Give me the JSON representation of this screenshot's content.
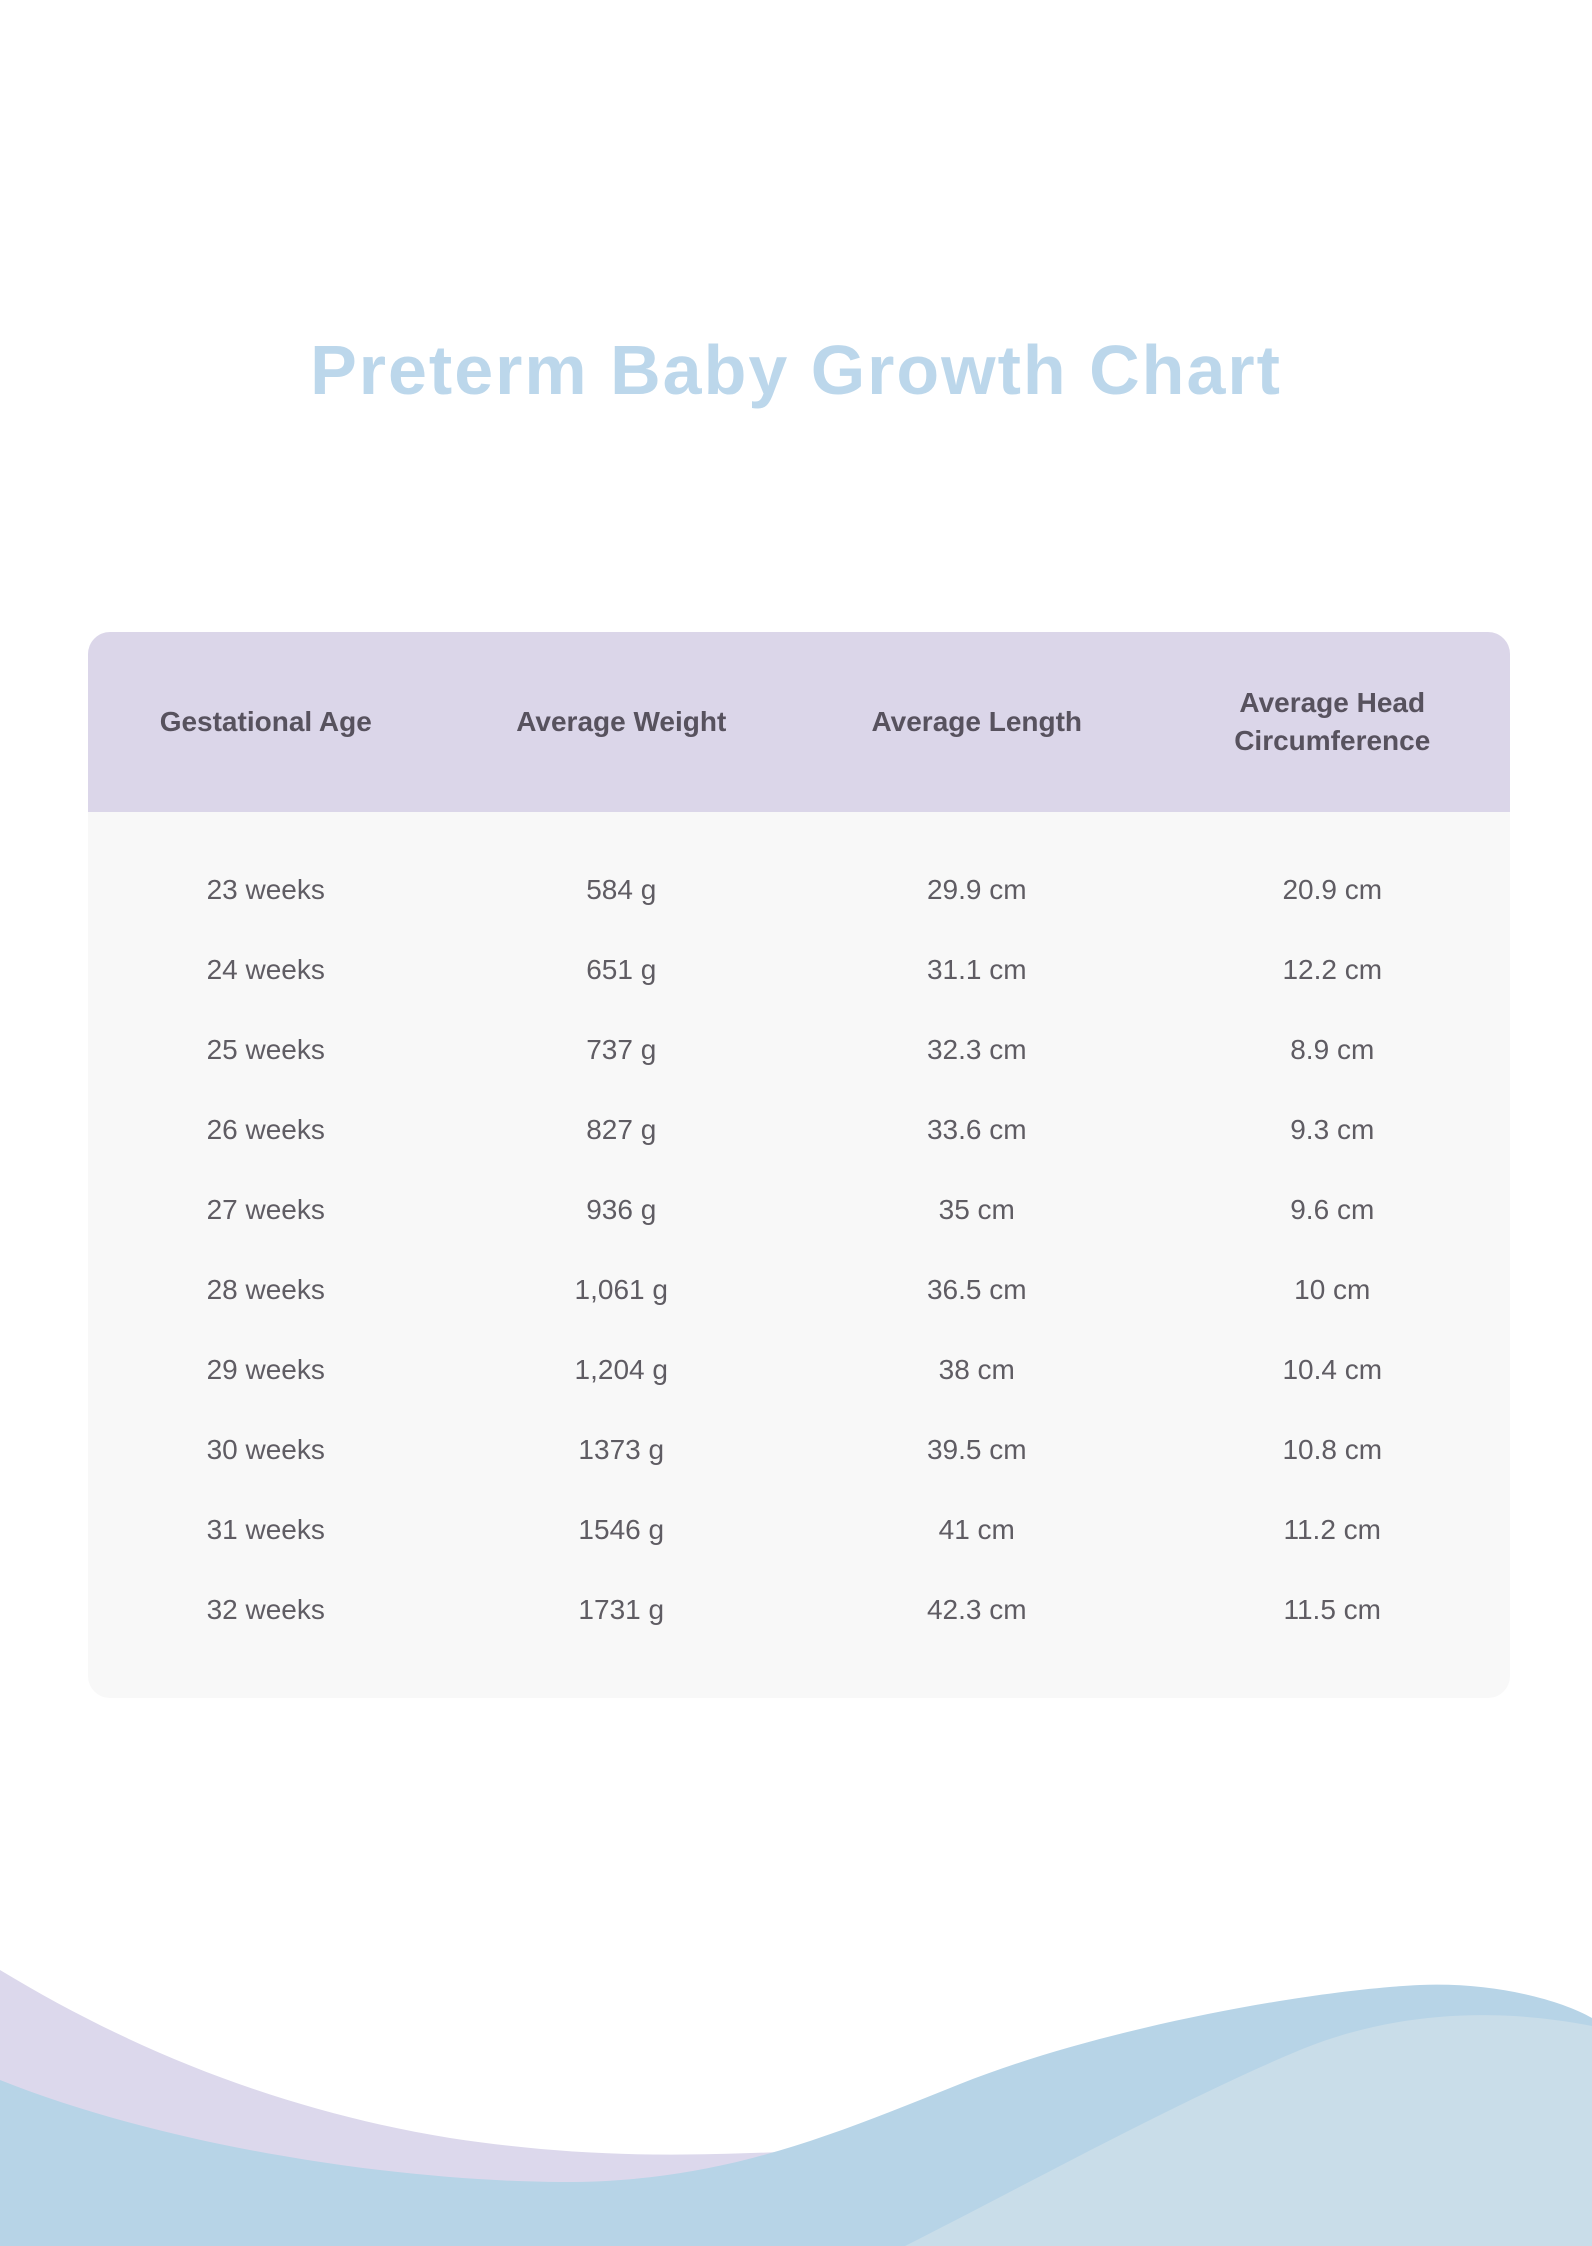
{
  "page": {
    "title": "Preterm Baby Growth Chart",
    "colors": {
      "title_text": "#BCD7EB",
      "table_header_bg": "#DBD6E9",
      "table_header_text": "#57525E",
      "table_body_bg": "#F8F8F8",
      "table_body_text": "#5F5C63",
      "wave_purple": "#DCD8EC",
      "wave_blue": "#B7D4E7",
      "wave_light_blue": "#C9DDE9"
    }
  },
  "table": {
    "columns": [
      "Gestational Age",
      "Average Weight",
      "Average Length",
      "Average Head Circumference"
    ],
    "rows": [
      [
        "23 weeks",
        "584 g",
        "29.9 cm",
        "20.9 cm"
      ],
      [
        "24 weeks",
        "651 g",
        "31.1 cm",
        "12.2 cm"
      ],
      [
        "25 weeks",
        "737 g",
        "32.3 cm",
        "8.9 cm"
      ],
      [
        "26 weeks",
        "827 g",
        "33.6 cm",
        "9.3 cm"
      ],
      [
        "27 weeks",
        "936 g",
        "35 cm",
        "9.6 cm"
      ],
      [
        "28 weeks",
        "1,061 g",
        "36.5 cm",
        "10 cm"
      ],
      [
        "29 weeks",
        "1,204 g",
        "38 cm",
        "10.4 cm"
      ],
      [
        "30 weeks",
        "1373 g",
        "39.5 cm",
        "10.8 cm"
      ],
      [
        "31 weeks",
        "1546 g",
        "41 cm",
        "11.2 cm"
      ],
      [
        "32 weeks",
        "1731 g",
        "42.3 cm",
        "11.5 cm"
      ]
    ]
  },
  "chart_data": {
    "type": "table",
    "title": "Preterm Baby Growth Chart",
    "columns": [
      "Gestational Age",
      "Average Weight",
      "Average Length",
      "Average Head Circumference"
    ],
    "gestational_age_weeks": [
      23,
      24,
      25,
      26,
      27,
      28,
      29,
      30,
      31,
      32
    ],
    "average_weight_g": [
      584,
      651,
      737,
      827,
      936,
      1061,
      1204,
      1373,
      1546,
      1731
    ],
    "average_length_cm": [
      29.9,
      31.1,
      32.3,
      33.6,
      35,
      36.5,
      38,
      39.5,
      41,
      42.3
    ],
    "average_head_circumference_cm": [
      20.9,
      12.2,
      8.9,
      9.3,
      9.6,
      10,
      10.4,
      10.8,
      11.2,
      11.5
    ]
  }
}
